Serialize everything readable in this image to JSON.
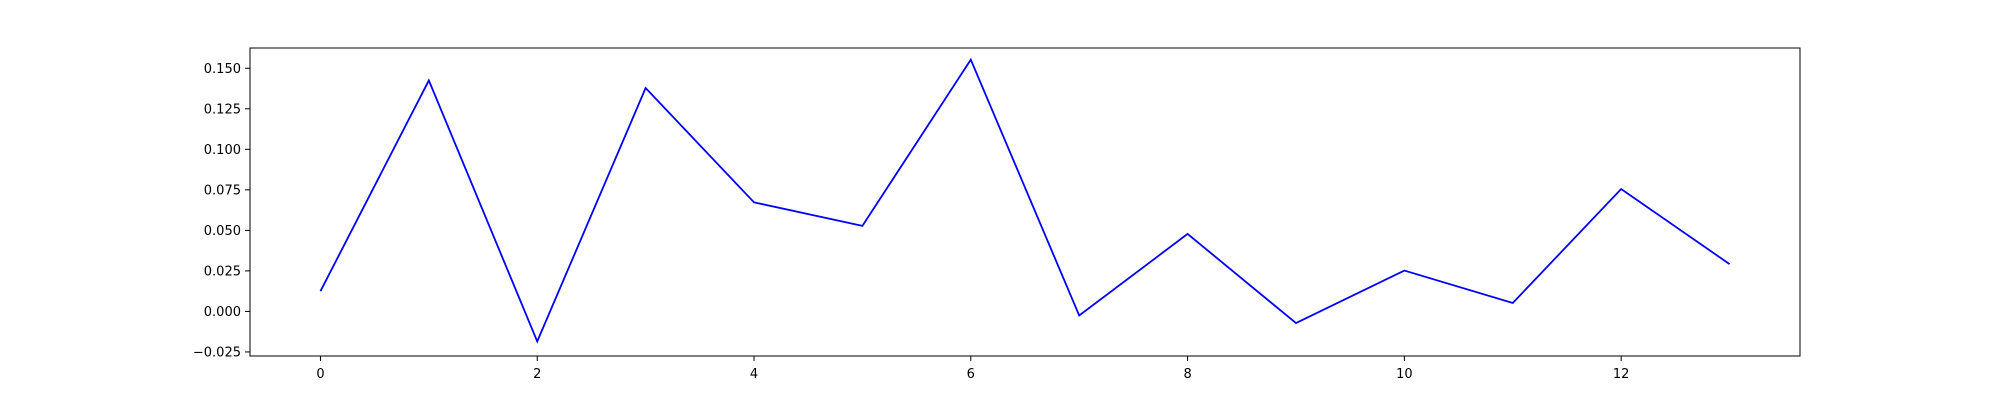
{
  "chart_data": {
    "type": "line",
    "title": "",
    "xlabel": "",
    "ylabel": "",
    "xlim": [
      -0.65,
      13.65
    ],
    "ylim": [
      -0.0275,
      0.1625
    ],
    "x_ticks": [
      0,
      2,
      4,
      6,
      8,
      10,
      12
    ],
    "x_tick_labels": [
      "0",
      "2",
      "4",
      "6",
      "8",
      "10",
      "12"
    ],
    "y_ticks": [
      -0.025,
      0.0,
      0.025,
      0.05,
      0.075,
      0.1,
      0.125,
      0.15
    ],
    "y_tick_labels": [
      "−0.025",
      "0.000",
      "0.025",
      "0.050",
      "0.075",
      "0.100",
      "0.125",
      "0.150"
    ],
    "grid": false,
    "legend": "none",
    "series": [
      {
        "color": "#0000ff",
        "x": [
          0,
          1,
          2,
          3,
          4,
          5,
          6,
          7,
          8,
          9,
          10,
          11,
          12,
          13
        ],
        "values": [
          0.0125,
          0.1425,
          -0.0185,
          0.1378,
          0.0673,
          0.0528,
          0.1553,
          -0.0025,
          0.0478,
          -0.0072,
          0.0252,
          0.0052,
          0.0755,
          0.0292
        ]
      }
    ]
  }
}
